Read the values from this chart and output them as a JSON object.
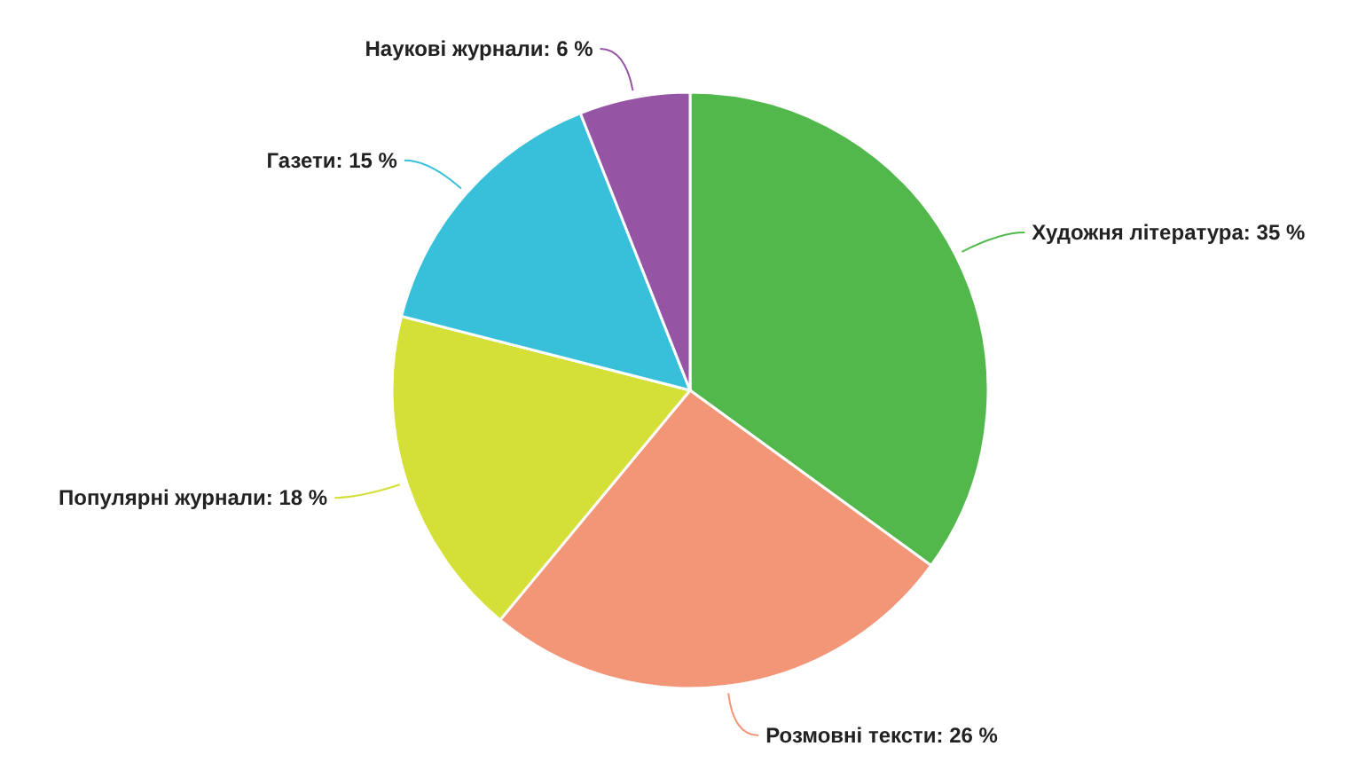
{
  "chart_data": {
    "type": "pie",
    "categories": [
      "Художня література",
      "Розмовні тексти",
      "Популярні журнали",
      "Газети",
      "Наукові журнали"
    ],
    "values": [
      35,
      26,
      18,
      15,
      6
    ],
    "value_labels": [
      "35 %",
      "26 %",
      "18 %",
      "15 %",
      "6 %"
    ],
    "colors": [
      "#52b84c",
      "#f29677",
      "#d4df38",
      "#38c0da",
      "#9654a5"
    ],
    "legend": false
  }
}
